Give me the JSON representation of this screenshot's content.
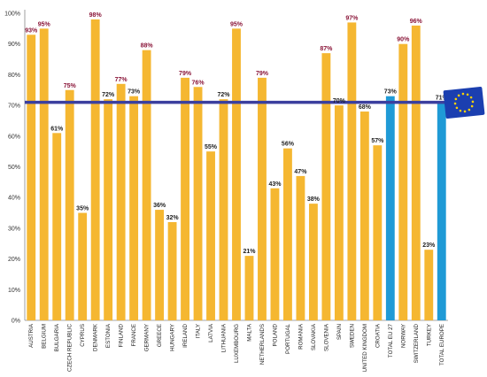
{
  "chart_data": {
    "type": "bar",
    "title": "",
    "xlabel": "",
    "ylabel": "",
    "ylim": [
      0,
      100
    ],
    "yticks": [
      "0%",
      "10%",
      "20%",
      "30%",
      "40%",
      "50%",
      "60%",
      "70%",
      "80%",
      "90%",
      "100%"
    ],
    "grid": false,
    "reference_line": {
      "value": 71,
      "color": "#3b3f9e"
    },
    "categories": [
      "AUSTRIA",
      "BELGIUM",
      "BULGARIA",
      "CZECH REPUBLIC",
      "CYPRUS",
      "DENMARK",
      "ESTONIA",
      "FINLAND",
      "FRANCE",
      "GERMANY",
      "GREECE",
      "HUNGARY",
      "IRELAND",
      "ITALY",
      "LATVIA",
      "LITHUANIA",
      "LUXEMBOURG",
      "MALTA",
      "NETHERLANDS",
      "POLAND",
      "PORTUGAL",
      "ROMANIA",
      "SLOVAKIA",
      "SLOVENIA",
      "SPAIN",
      "SWEDEN",
      "UNITED KINGDOM",
      "CROATIA",
      "TOTAL EU 27",
      "NORWAY",
      "SWITZERLAND",
      "TURKEY",
      "TOTAL EUROPE"
    ],
    "values": [
      93,
      95,
      61,
      75,
      35,
      98,
      72,
      77,
      73,
      88,
      36,
      32,
      79,
      76,
      55,
      72,
      95,
      21,
      79,
      43,
      56,
      47,
      38,
      87,
      70,
      97,
      68,
      57,
      73,
      90,
      96,
      23,
      71
    ],
    "labels": [
      "93%",
      "95%",
      "61%",
      "75%",
      "35%",
      "98%",
      "72%",
      "77%",
      "73%",
      "88%",
      "36%",
      "32%",
      "79%",
      "76%",
      "55%",
      "72%",
      "95%",
      "21%",
      "79%",
      "43%",
      "56%",
      "47%",
      "38%",
      "87%",
      "70%",
      "97%",
      "68%",
      "57%",
      "73%",
      "90%",
      "96%",
      "23%",
      "71%"
    ],
    "bar_colors": {
      "default": "#f5b731",
      "total": "#1f9ad6"
    },
    "total_categories": [
      "TOTAL EU 27",
      "TOTAL EUROPE"
    ],
    "label_colors": {
      "high": "#8a1538",
      "default": "#222222"
    },
    "flag": {
      "icon": "eu-flag-icon",
      "color": "#1b3fb0",
      "star_color": "#ffd200"
    }
  }
}
